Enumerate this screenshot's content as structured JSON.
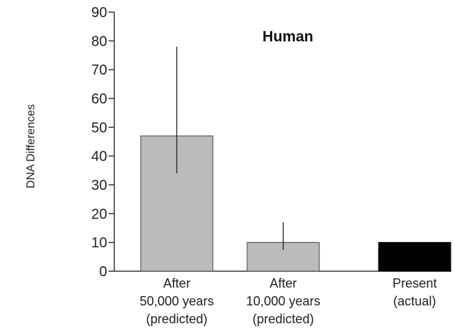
{
  "chart_data": {
    "type": "bar",
    "title": "Human",
    "xlabel": "",
    "ylabel": "DNA Differences",
    "ylim": [
      0,
      90
    ],
    "yticks": [
      0,
      10,
      20,
      30,
      40,
      50,
      60,
      70,
      80,
      90
    ],
    "grid": false,
    "categories": [
      [
        "After",
        "50,000 years",
        "(predicted)"
      ],
      [
        "After",
        "10,000 years",
        "(predicted)"
      ],
      [
        "Present",
        "(actual)"
      ]
    ],
    "values": [
      47,
      10,
      10
    ],
    "error_bars": [
      {
        "low": 34,
        "high": 78
      },
      {
        "low": 7.5,
        "high": 17
      },
      null
    ],
    "colors": [
      "#bbbbbb",
      "#bbbbbb",
      "#000000"
    ]
  }
}
